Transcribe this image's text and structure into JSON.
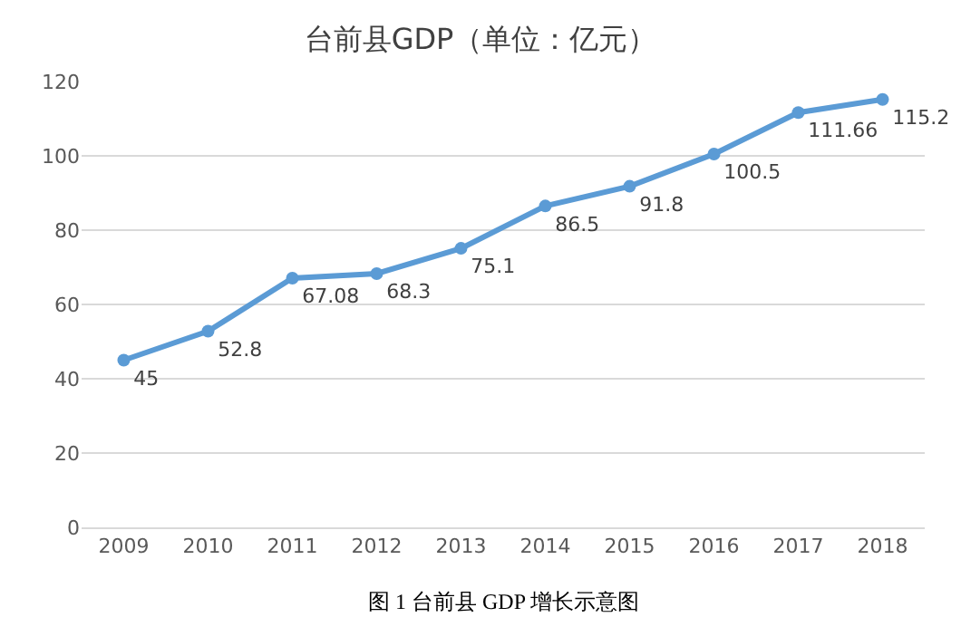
{
  "chart_data": {
    "type": "line",
    "title": "台前县GDP（单位：亿元）",
    "categories": [
      "2009",
      "2010",
      "2011",
      "2012",
      "2013",
      "2014",
      "2015",
      "2016",
      "2017",
      "2018"
    ],
    "values": [
      45,
      52.8,
      67.08,
      68.3,
      75.1,
      86.5,
      91.8,
      100.5,
      111.66,
      115.2
    ],
    "color": "#5b9bd5",
    "ylim": [
      0,
      120
    ],
    "yticks": [
      0,
      20,
      40,
      60,
      80,
      100,
      120
    ],
    "grid": "y",
    "marker": "circle",
    "line_style": "solid",
    "data_labels": true,
    "annotations": [
      "图 1 台前县 GDP 增长示意图"
    ]
  }
}
